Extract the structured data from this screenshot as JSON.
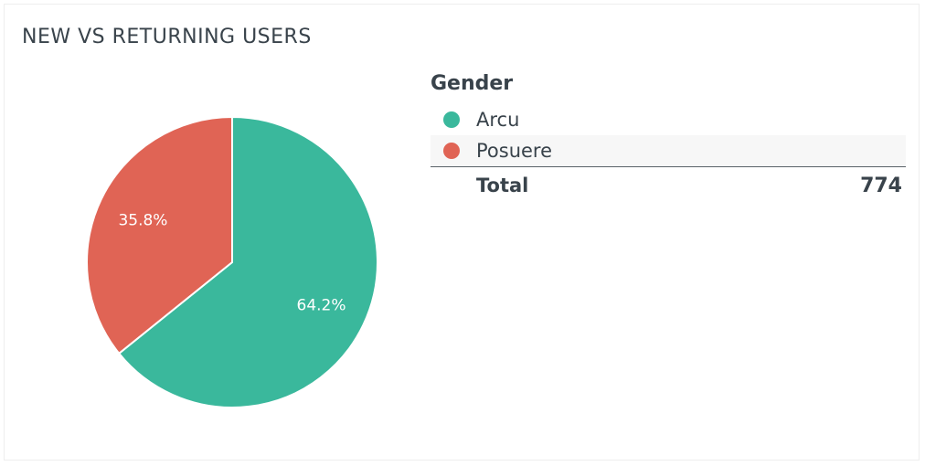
{
  "chart_data": {
    "type": "pie",
    "title": "NEW VS RETURNING USERS",
    "legend_title": "Gender",
    "categories": [
      "Arcu",
      "Posuere"
    ],
    "values": [
      64.2,
      35.8
    ],
    "value_labels": [
      "64.2%",
      "35.8%"
    ],
    "colors": [
      "#3ab89c",
      "#e06455"
    ],
    "total_label": "Total",
    "total_value": "774",
    "legend_position": "right"
  }
}
